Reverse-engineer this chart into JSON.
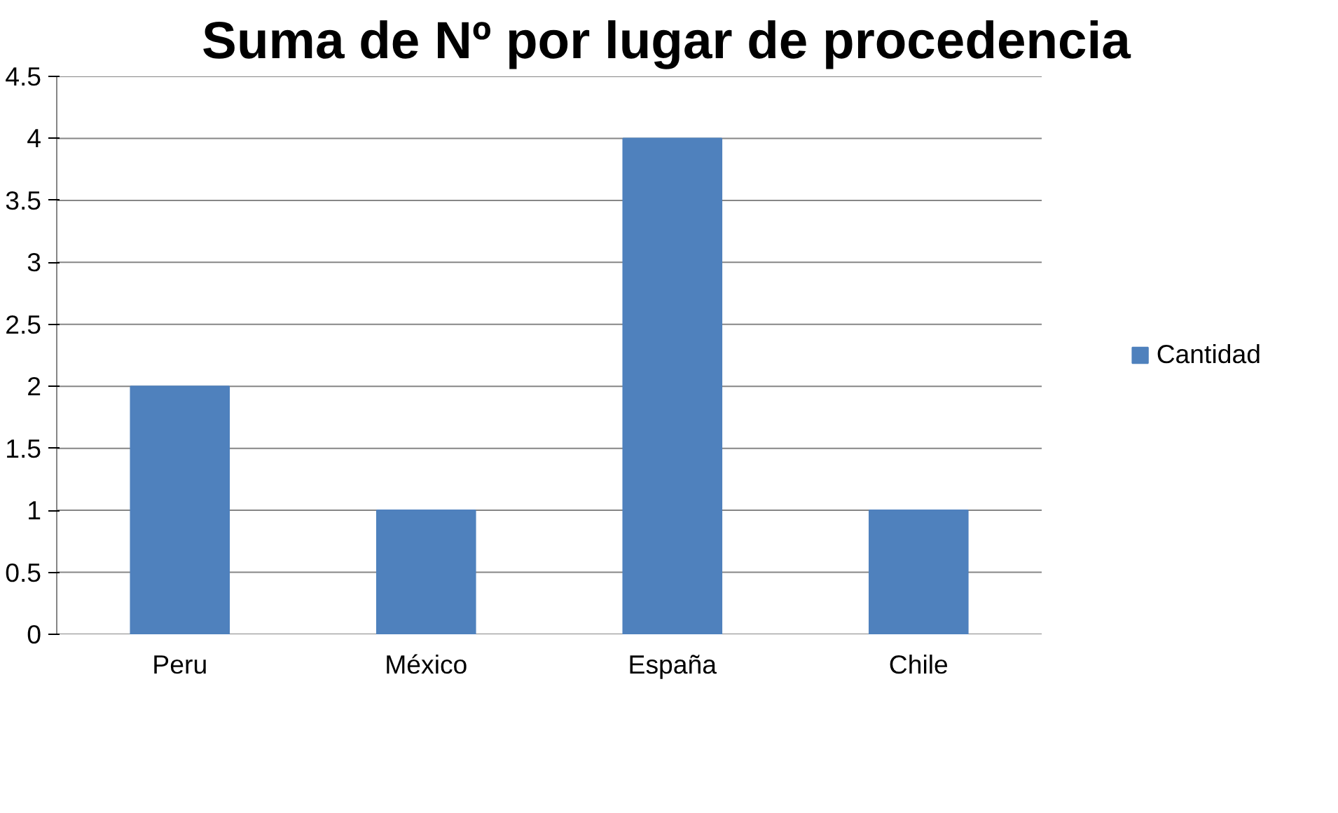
{
  "chart_data": {
    "type": "bar",
    "title": "Suma de Nº por lugar de procedencia",
    "categories": [
      "Peru",
      "México",
      "España",
      "Chile"
    ],
    "series": [
      {
        "name": "Cantidad",
        "color": "#4f81bd",
        "values": [
          2,
          1,
          4,
          1
        ]
      }
    ],
    "ylim": [
      0,
      4.5
    ],
    "yticks": [
      0,
      {
        "value": 0.5,
        "label": "0.5"
      },
      1,
      {
        "value": 1.5,
        "label": "1.5"
      },
      2,
      {
        "value": 2.5,
        "label": "2.5"
      },
      3,
      {
        "value": 3.5,
        "label": "3.5"
      },
      4,
      {
        "value": 4.5,
        "label": "4.5"
      }
    ],
    "grid": "y",
    "legend": "right"
  }
}
